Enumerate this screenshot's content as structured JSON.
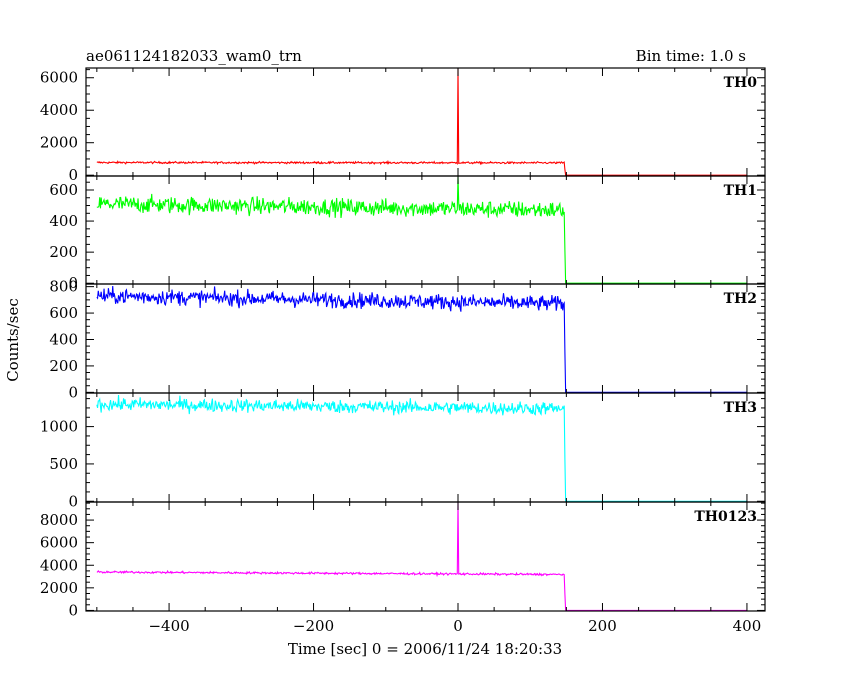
{
  "header": {
    "title": "ae061124182033_wam0_trn",
    "bin_time": "Bin time: 1.0 s"
  },
  "chart_data": {
    "type": "line",
    "xlabel": "Time [sec] 0 = 2006/11/24 18:20:33",
    "ylabel": "Counts/sec",
    "xlim": [
      -515,
      425
    ],
    "x_ticks": [
      -400,
      -200,
      0,
      200,
      400
    ],
    "panels": [
      {
        "name": "TH0",
        "color": "#ff0000",
        "ylim": [
          -50,
          6600
        ],
        "y_ticks": [
          0,
          2000,
          4000,
          6000
        ],
        "baseline_before": 780,
        "baseline_drift": 20,
        "noise": 30,
        "spike": {
          "x": 0,
          "peak": 6600
        },
        "drop_x": 148,
        "after_level": 0
      },
      {
        "name": "TH1",
        "color": "#00ff00",
        "ylim": [
          -5,
          690
        ],
        "y_ticks": [
          0,
          200,
          400,
          600
        ],
        "baseline_before": 510,
        "baseline_drift": 40,
        "noise": 28,
        "spike": {
          "x": 0,
          "peak": 690
        },
        "drop_x": 148,
        "after_level": 0
      },
      {
        "name": "TH2",
        "color": "#0000ff",
        "ylim": [
          -5,
          820
        ],
        "y_ticks": [
          0,
          200,
          400,
          600,
          800
        ],
        "baseline_before": 730,
        "baseline_drift": 60,
        "noise": 30,
        "spike": null,
        "drop_x": 148,
        "after_level": 0
      },
      {
        "name": "TH3",
        "color": "#00ffff",
        "ylim": [
          -10,
          1450
        ],
        "y_ticks": [
          0,
          500,
          1000
        ],
        "baseline_before": 1300,
        "baseline_drift": 60,
        "noise": 45,
        "spike": null,
        "drop_x": 148,
        "after_level": 0
      },
      {
        "name": "TH0123",
        "color": "#ff00ff",
        "ylim": [
          -50,
          9600
        ],
        "y_ticks": [
          0,
          2000,
          4000,
          6000,
          8000
        ],
        "baseline_before": 3400,
        "baseline_drift": 220,
        "noise": 45,
        "spike": {
          "x": 0,
          "peak": 9600
        },
        "drop_x": 148,
        "after_level": 0
      }
    ]
  }
}
